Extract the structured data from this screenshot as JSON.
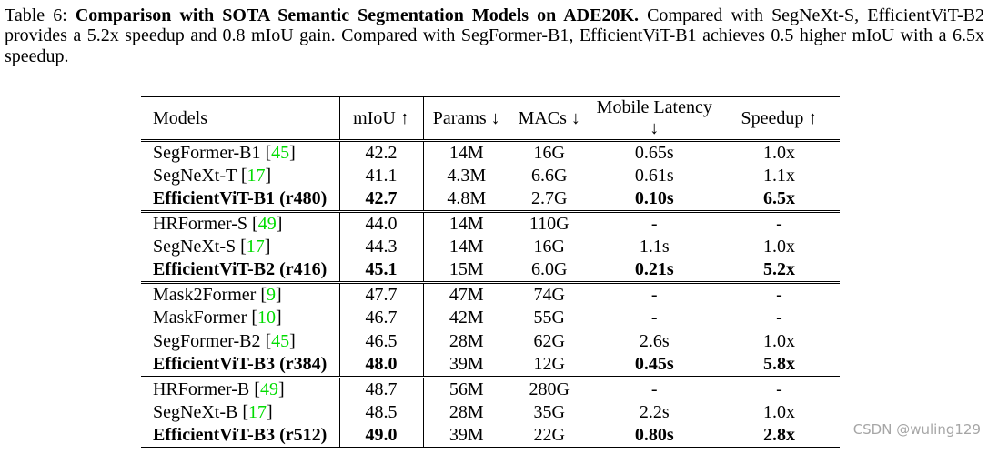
{
  "caption": {
    "prefix": "Table 6: ",
    "bold": "Comparison with SOTA Semantic Segmentation Models on ADE20K.",
    "rest": " Compared with SegNeXt-S, EfficientViT-B2 provides a 5.2x speedup and 0.8 mIoU gain. Compared with SegFormer-B1, EfficientViT-B1 achieves 0.5 higher mIoU with a 6.5x speedup."
  },
  "table": {
    "cite_open": " [",
    "cite_close": "]",
    "columns": [
      {
        "key": "models",
        "label": "Models"
      },
      {
        "key": "miou",
        "label": "mIoU ↑"
      },
      {
        "key": "params",
        "label": "Params ↓"
      },
      {
        "key": "macs",
        "label": "MACs ↓"
      },
      {
        "key": "latency",
        "label": "Mobile Latency ↓"
      },
      {
        "key": "speedup",
        "label": "Speedup ↑"
      }
    ],
    "groups": [
      {
        "rows": [
          {
            "model": "SegFormer-B1",
            "cite": "45",
            "miou": "42.2",
            "params": "14M",
            "macs": "16G",
            "latency": "0.65s",
            "speedup": "1.0x",
            "highlight": false
          },
          {
            "model": "SegNeXt-T",
            "cite": "17",
            "miou": "41.1",
            "params": "4.3M",
            "macs": "6.6G",
            "latency": "0.61s",
            "speedup": "1.1x",
            "highlight": false
          },
          {
            "model": "EfficientViT-B1 (r480)",
            "cite": null,
            "miou": "42.7",
            "params": "4.8M",
            "macs": "2.7G",
            "latency": "0.10s",
            "speedup": "6.5x",
            "highlight": true
          }
        ]
      },
      {
        "rows": [
          {
            "model": "HRFormer-S",
            "cite": "49",
            "miou": "44.0",
            "params": "14M",
            "macs": "110G",
            "latency": "-",
            "speedup": "-",
            "highlight": false
          },
          {
            "model": "SegNeXt-S",
            "cite": "17",
            "miou": "44.3",
            "params": "14M",
            "macs": "16G",
            "latency": "1.1s",
            "speedup": "1.0x",
            "highlight": false
          },
          {
            "model": "EfficientViT-B2 (r416)",
            "cite": null,
            "miou": "45.1",
            "params": "15M",
            "macs": "6.0G",
            "latency": "0.21s",
            "speedup": "5.2x",
            "highlight": true
          }
        ]
      },
      {
        "rows": [
          {
            "model": "Mask2Former",
            "cite": "9",
            "miou": "47.7",
            "params": "47M",
            "macs": "74G",
            "latency": "-",
            "speedup": "-",
            "highlight": false
          },
          {
            "model": "MaskFormer",
            "cite": "10",
            "miou": "46.7",
            "params": "42M",
            "macs": "55G",
            "latency": "-",
            "speedup": "-",
            "highlight": false
          },
          {
            "model": "SegFormer-B2",
            "cite": "45",
            "miou": "46.5",
            "params": "28M",
            "macs": "62G",
            "latency": "2.6s",
            "speedup": "1.0x",
            "highlight": false
          },
          {
            "model": "EfficientViT-B3 (r384)",
            "cite": null,
            "miou": "48.0",
            "params": "39M",
            "macs": "12G",
            "latency": "0.45s",
            "speedup": "5.8x",
            "highlight": true
          }
        ]
      },
      {
        "rows": [
          {
            "model": "HRFormer-B",
            "cite": "49",
            "miou": "48.7",
            "params": "56M",
            "macs": "280G",
            "latency": "-",
            "speedup": "-",
            "highlight": false
          },
          {
            "model": "SegNeXt-B",
            "cite": "17",
            "miou": "48.5",
            "params": "28M",
            "macs": "35G",
            "latency": "2.2s",
            "speedup": "1.0x",
            "highlight": false
          },
          {
            "model": "EfficientViT-B3 (r512)",
            "cite": null,
            "miou": "49.0",
            "params": "39M",
            "macs": "22G",
            "latency": "0.80s",
            "speedup": "2.8x",
            "highlight": true
          }
        ]
      }
    ]
  },
  "colors": {
    "citation_green": "#00dc00",
    "text": "#000000",
    "watermark_gray": "#a6a6a6"
  },
  "watermark": "CSDN @wuling129"
}
